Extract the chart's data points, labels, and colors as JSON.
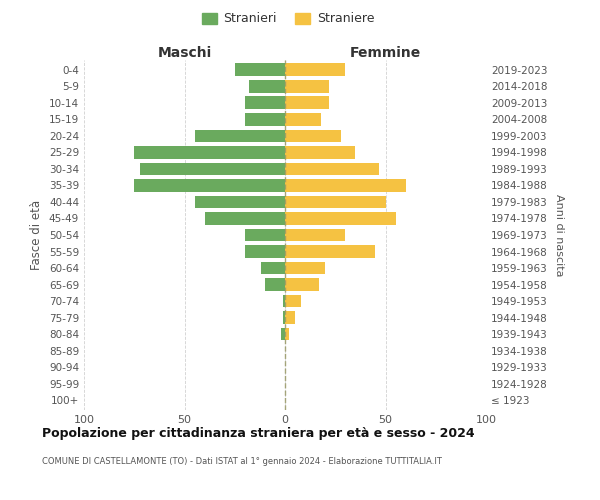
{
  "age_groups": [
    "100+",
    "95-99",
    "90-94",
    "85-89",
    "80-84",
    "75-79",
    "70-74",
    "65-69",
    "60-64",
    "55-59",
    "50-54",
    "45-49",
    "40-44",
    "35-39",
    "30-34",
    "25-29",
    "20-24",
    "15-19",
    "10-14",
    "5-9",
    "0-4"
  ],
  "birth_years": [
    "≤ 1923",
    "1924-1928",
    "1929-1933",
    "1934-1938",
    "1939-1943",
    "1944-1948",
    "1949-1953",
    "1954-1958",
    "1959-1963",
    "1964-1968",
    "1969-1973",
    "1974-1978",
    "1979-1983",
    "1984-1988",
    "1989-1993",
    "1994-1998",
    "1999-2003",
    "2004-2008",
    "2009-2013",
    "2014-2018",
    "2019-2023"
  ],
  "maschi": [
    0,
    0,
    0,
    0,
    2,
    1,
    1,
    10,
    12,
    20,
    20,
    40,
    45,
    75,
    72,
    75,
    45,
    20,
    20,
    18,
    25
  ],
  "femmine": [
    0,
    0,
    0,
    0,
    2,
    5,
    8,
    17,
    20,
    45,
    30,
    55,
    50,
    60,
    47,
    35,
    28,
    18,
    22,
    22,
    30
  ],
  "male_color": "#6aaa5e",
  "female_color": "#f5c242",
  "background_color": "#ffffff",
  "grid_color": "#cccccc",
  "title": "Popolazione per cittadinanza straniera per età e sesso - 2024",
  "subtitle": "COMUNE DI CASTELLAMONTE (TO) - Dati ISTAT al 1° gennaio 2024 - Elaborazione TUTTITALIA.IT",
  "ylabel_left": "Fasce di età",
  "ylabel_right": "Anni di nascita",
  "legend_maschi": "Stranieri",
  "legend_femmine": "Straniere",
  "xlim": 100
}
